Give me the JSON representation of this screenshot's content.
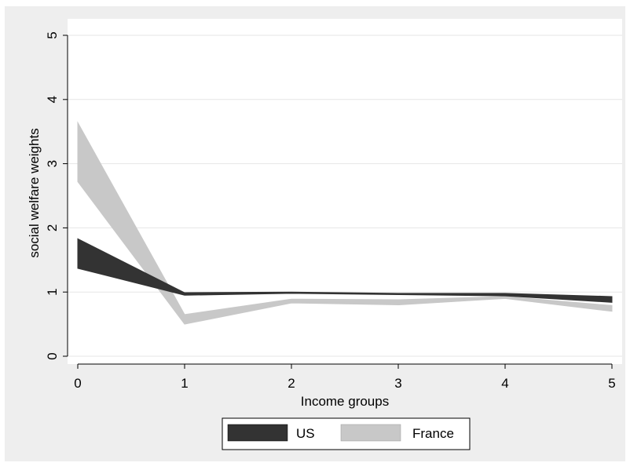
{
  "chart_data": {
    "type": "area",
    "xlabel": "Income groups",
    "ylabel": "social welfare weights",
    "xlim": [
      0,
      5
    ],
    "ylim": [
      0,
      5
    ],
    "x_ticks": [
      "0",
      "1",
      "2",
      "3",
      "4",
      "5"
    ],
    "y_ticks": [
      "0",
      "1",
      "2",
      "3",
      "4",
      "5"
    ],
    "grid": true,
    "legend_position": "bottom",
    "x": [
      0,
      1,
      2,
      3,
      4,
      5
    ],
    "series": [
      {
        "name": "US",
        "color": "#333333",
        "lower": [
          1.37,
          0.95,
          0.98,
          0.96,
          0.94,
          0.84
        ],
        "upper": [
          1.83,
          0.99,
          1.0,
          0.98,
          0.98,
          0.93
        ]
      },
      {
        "name": "France",
        "color": "#c8c8c8",
        "lower": [
          2.72,
          0.5,
          0.83,
          0.8,
          0.9,
          0.7
        ],
        "upper": [
          3.64,
          0.65,
          0.89,
          0.88,
          0.93,
          0.79
        ]
      }
    ]
  }
}
